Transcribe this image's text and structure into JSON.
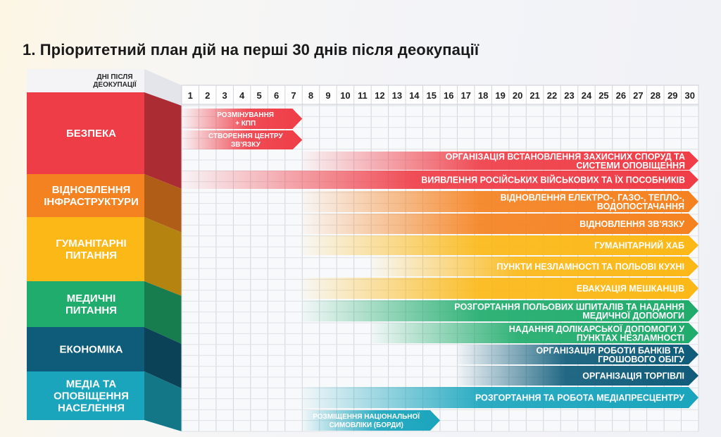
{
  "title": "1. Пріоритетний план дій на перші 30 днів після деокупації",
  "header_label": [
    "ДНІ ПІСЛЯ",
    "ДЕОКУПАЦІЇ"
  ],
  "days": [
    "1",
    "2",
    "3",
    "4",
    "5",
    "6",
    "7",
    "8",
    "9",
    "10",
    "11",
    "12",
    "13",
    "14",
    "15",
    "16",
    "17",
    "18",
    "19",
    "20",
    "21",
    "22",
    "23",
    "24",
    "25",
    "26",
    "27",
    "28",
    "29",
    "30"
  ],
  "categories": [
    {
      "lines": [
        "БЕЗПЕКА"
      ],
      "color": "#ef3d47"
    },
    {
      "lines": [
        "ВІДНОВЛЕННЯ",
        "ІНФРАСТРУКТУРИ"
      ],
      "color": "#f58220"
    },
    {
      "lines": [
        "ГУМАНІТАРНІ",
        "ПИТАННЯ"
      ],
      "color": "#fbb816"
    },
    {
      "lines": [
        "МЕДИЧНІ",
        "ПИТАННЯ"
      ],
      "color": "#20ac6c"
    },
    {
      "lines": [
        "ЕКОНОМІКА"
      ],
      "color": "#0f5c7a"
    },
    {
      "lines": [
        "МЕДІА ТА",
        "ОПОВІЩЕННЯ",
        "НАСЕЛЕННЯ"
      ],
      "color": "#1aa5bd"
    }
  ],
  "tasks": [
    {
      "lines": [
        "РОЗМІНУВАННЯ",
        "+ КПП"
      ],
      "start": 1,
      "end": 7,
      "color": "#ef3d47"
    },
    {
      "lines": [
        "СТВОРЕННЯ ЦЕНТРУ",
        "ЗВ'ЯЗКУ"
      ],
      "start": 1,
      "end": 7,
      "color": "#ef3d47"
    },
    {
      "lines": [
        "ОРГАНІЗАЦІЯ ВСТАНОВЛЕННЯ ЗАХИСНИХ СПОРУД ТА",
        "СИСТЕМИ ОПОВІЩЕННЯ"
      ],
      "start": 8,
      "end": 30,
      "color": "#ef3d47"
    },
    {
      "lines": [
        "ВИЯВЛЕННЯ РОСІЙСЬКИХ ВІЙСЬКОВИХ ТА ЇХ ПОСОБНИКІВ"
      ],
      "start": 1,
      "end": 30,
      "color": "#ef3d47"
    },
    {
      "lines": [
        "ВІДНОВЛЕННЯ ЕЛЕКТРО-, ГАЗО-, ТЕПЛО-,",
        "ВОДОПОСТАЧАННЯ"
      ],
      "start": 8,
      "end": 30,
      "color": "#f58220"
    },
    {
      "lines": [
        "ВІДНОВЛЕННЯ ЗВ'ЯЗКУ"
      ],
      "start": 8,
      "end": 30,
      "color": "#f58220"
    },
    {
      "lines": [
        "ГУМАНІТАРНИЙ ХАБ"
      ],
      "start": 8,
      "end": 30,
      "color": "#fbb816"
    },
    {
      "lines": [
        "ПУНКТИ НЕЗЛАМНОСТІ ТА ПОЛЬОВІ КУХНІ"
      ],
      "start": 12,
      "end": 30,
      "color": "#fbb816"
    },
    {
      "lines": [
        "ЕВАКУАЦІЯ МЕШКАНЦІВ"
      ],
      "start": 8,
      "end": 30,
      "color": "#fbb816"
    },
    {
      "lines": [
        "РОЗГОРТАННЯ ПОЛЬОВИХ ШПИТАЛІВ ТА НАДАННЯ",
        "МЕДИЧНОЇ ДОПОМОГИ"
      ],
      "start": 8,
      "end": 30,
      "color": "#20ac6c"
    },
    {
      "lines": [
        "НАДАННЯ ДОЛІКАРСЬКОЇ ДОПОМОГИ У",
        "ПУНКТАХ НЕЗЛАМНОСТІ"
      ],
      "start": 12,
      "end": 30,
      "color": "#20ac6c"
    },
    {
      "lines": [
        "ОРГАНІЗАЦІЯ РОБОТИ БАНКІВ ТА",
        "ГРОШОВОГО ОБІГУ"
      ],
      "start": 17,
      "end": 30,
      "color": "#0f5c7a"
    },
    {
      "lines": [
        "ОРГАНІЗАЦІЯ ТОРГІВЛІ"
      ],
      "start": 17,
      "end": 30,
      "color": "#0f5c7a"
    },
    {
      "lines": [
        "РОЗГОРТАННЯ ТА РОБОТА МЕДІАПРЕСЦЕНТРУ"
      ],
      "start": 8,
      "end": 30,
      "color": "#1aa5bd"
    },
    {
      "lines": [
        "РОЗМІЩЕННЯ НАЦІОНАЛЬНОЇ",
        "СИМОВЛІКИ (БОРДИ)"
      ],
      "start": 8,
      "end": 15,
      "color": "#1aa5bd"
    }
  ]
}
